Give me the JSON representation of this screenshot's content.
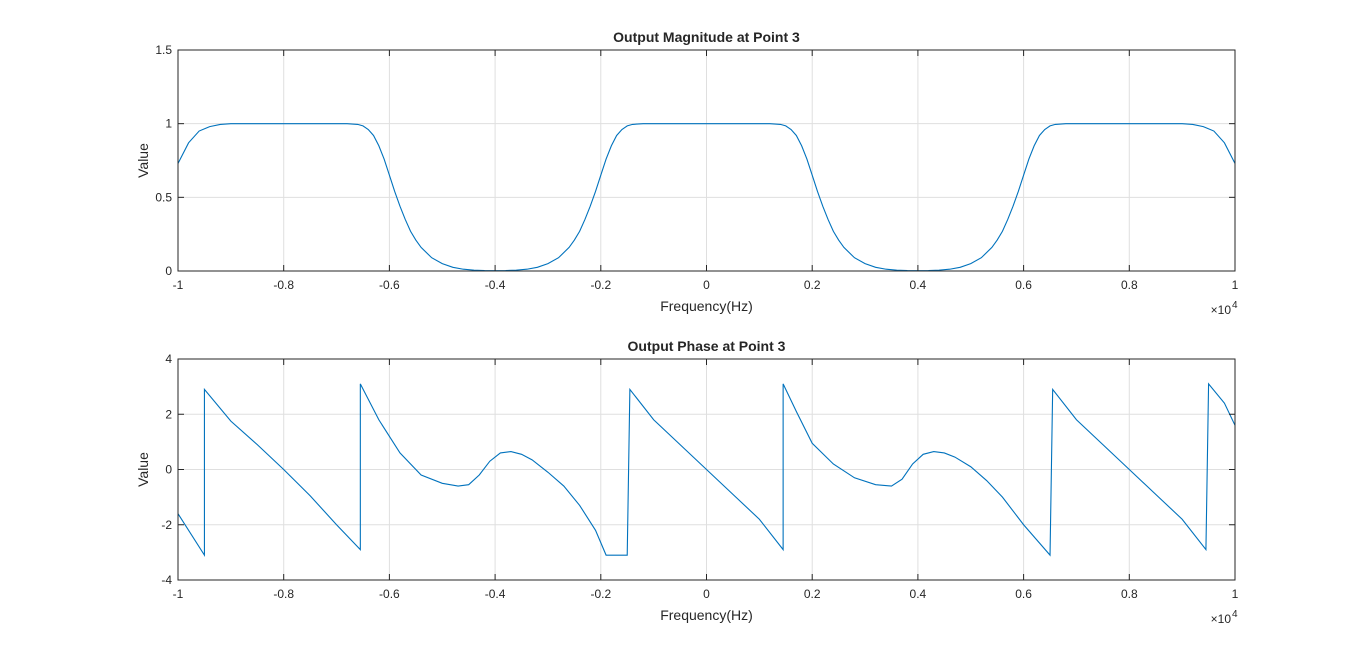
{
  "chart_data": [
    {
      "type": "line",
      "title": "Output Magnitude at Point 3",
      "xlabel": "Frequency(Hz)",
      "ylabel": "Value",
      "x_exponent_label": "×10",
      "x_exponent": "4",
      "xlim": [
        -1,
        1
      ],
      "ylim": [
        0,
        1.5
      ],
      "grid": true,
      "x_ticks": [
        -1,
        -0.8,
        -0.6,
        -0.4,
        -0.2,
        0,
        0.2,
        0.4,
        0.6,
        0.8,
        1
      ],
      "x_tick_labels": [
        "-1",
        "-0.8",
        "-0.6",
        "-0.4",
        "-0.2",
        "0",
        "0.2",
        "0.4",
        "0.6",
        "0.8",
        "1"
      ],
      "y_ticks": [
        0,
        0.5,
        1,
        1.5
      ],
      "y_tick_labels": [
        "0",
        "0.5",
        "1",
        "1.5"
      ],
      "color": "#0072bd",
      "series": [
        {
          "x": [
            -1,
            -0.98,
            -0.96,
            -0.94,
            -0.92,
            -0.9,
            -0.8,
            -0.7,
            -0.68,
            -0.66,
            -0.65,
            -0.64,
            -0.63,
            -0.62,
            -0.61,
            -0.6,
            -0.59,
            -0.58,
            -0.57,
            -0.56,
            -0.55,
            -0.54,
            -0.52,
            -0.5,
            -0.48,
            -0.46,
            -0.44,
            -0.42,
            -0.4,
            -0.38,
            -0.36,
            -0.34,
            -0.32,
            -0.3,
            -0.28,
            -0.26,
            -0.25,
            -0.24,
            -0.23,
            -0.22,
            -0.21,
            -0.2,
            -0.19,
            -0.18,
            -0.17,
            -0.16,
            -0.15,
            -0.14,
            -0.12,
            -0.1,
            -0.05,
            0,
            0.05,
            0.1,
            0.12,
            0.14,
            0.15,
            0.16,
            0.17,
            0.18,
            0.19,
            0.2,
            0.21,
            0.22,
            0.23,
            0.24,
            0.25,
            0.26,
            0.28,
            0.3,
            0.32,
            0.34,
            0.36,
            0.38,
            0.4,
            0.42,
            0.44,
            0.46,
            0.48,
            0.5,
            0.52,
            0.54,
            0.55,
            0.56,
            0.57,
            0.58,
            0.59,
            0.6,
            0.61,
            0.62,
            0.63,
            0.64,
            0.65,
            0.66,
            0.68,
            0.7,
            0.8,
            0.9,
            0.92,
            0.94,
            0.96,
            0.98,
            1
          ],
          "y": [
            0.73,
            0.87,
            0.95,
            0.98,
            0.995,
            1,
            1,
            1,
            1,
            0.995,
            0.985,
            0.96,
            0.92,
            0.85,
            0.76,
            0.65,
            0.54,
            0.44,
            0.35,
            0.27,
            0.21,
            0.16,
            0.09,
            0.05,
            0.025,
            0.012,
            0.006,
            0.003,
            0.002,
            0.003,
            0.006,
            0.012,
            0.025,
            0.05,
            0.09,
            0.16,
            0.21,
            0.27,
            0.35,
            0.44,
            0.54,
            0.65,
            0.76,
            0.85,
            0.92,
            0.96,
            0.985,
            0.995,
            1,
            1,
            1,
            1,
            1,
            1,
            1,
            0.995,
            0.985,
            0.96,
            0.92,
            0.85,
            0.76,
            0.65,
            0.54,
            0.44,
            0.35,
            0.27,
            0.21,
            0.16,
            0.09,
            0.05,
            0.025,
            0.012,
            0.006,
            0.003,
            0.002,
            0.003,
            0.006,
            0.012,
            0.025,
            0.05,
            0.09,
            0.16,
            0.21,
            0.27,
            0.35,
            0.44,
            0.54,
            0.65,
            0.76,
            0.85,
            0.92,
            0.96,
            0.985,
            0.995,
            1,
            1,
            1,
            1,
            0.995,
            0.98,
            0.95,
            0.87,
            0.73
          ]
        }
      ]
    },
    {
      "type": "line",
      "title": "Output Phase at Point 3",
      "xlabel": "Frequency(Hz)",
      "ylabel": "Value",
      "x_exponent_label": "×10",
      "x_exponent": "4",
      "xlim": [
        -1,
        1
      ],
      "ylim": [
        -4,
        4
      ],
      "grid": true,
      "x_ticks": [
        -1,
        -0.8,
        -0.6,
        -0.4,
        -0.2,
        0,
        0.2,
        0.4,
        0.6,
        0.8,
        1
      ],
      "x_tick_labels": [
        "-1",
        "-0.8",
        "-0.6",
        "-0.4",
        "-0.2",
        "0",
        "0.2",
        "0.4",
        "0.6",
        "0.8",
        "1"
      ],
      "y_ticks": [
        -4,
        -2,
        0,
        2,
        4
      ],
      "y_tick_labels": [
        "-4",
        "-2",
        "0",
        "2",
        "4"
      ],
      "color": "#0072bd",
      "series": [
        {
          "x": [
            -1,
            -0.95,
            -0.95,
            -0.9,
            -0.85,
            -0.8,
            -0.75,
            -0.7,
            -0.655,
            -0.655,
            -0.62,
            -0.58,
            -0.54,
            -0.5,
            -0.47,
            -0.45,
            -0.43,
            -0.41,
            -0.39,
            -0.37,
            -0.35,
            -0.33,
            -0.3,
            -0.27,
            -0.24,
            -0.21,
            -0.19,
            -0.15,
            -0.145,
            -0.1,
            -0.05,
            0,
            0.05,
            0.1,
            0.145,
            0.145,
            0.17,
            0.2,
            0.24,
            0.28,
            0.32,
            0.35,
            0.37,
            0.39,
            0.41,
            0.43,
            0.45,
            0.47,
            0.5,
            0.53,
            0.56,
            0.6,
            0.65,
            0.655,
            0.7,
            0.75,
            0.8,
            0.85,
            0.9,
            0.945,
            0.95,
            0.98,
            1
          ],
          "y": [
            -1.6,
            -3.1,
            2.9,
            1.75,
            0.9,
            0.0,
            -0.95,
            -2.0,
            -2.9,
            3.1,
            1.8,
            0.6,
            -0.2,
            -0.5,
            -0.6,
            -0.55,
            -0.2,
            0.3,
            0.6,
            0.65,
            0.55,
            0.35,
            -0.1,
            -0.6,
            -1.3,
            -2.2,
            -3.1,
            -3.1,
            2.9,
            1.8,
            0.9,
            0.0,
            -0.9,
            -1.8,
            -2.9,
            3.1,
            2.1,
            0.95,
            0.2,
            -0.3,
            -0.55,
            -0.6,
            -0.35,
            0.2,
            0.55,
            0.65,
            0.6,
            0.45,
            0.1,
            -0.4,
            -1.0,
            -2.0,
            -3.1,
            2.9,
            1.8,
            0.9,
            0.0,
            -0.9,
            -1.8,
            -2.9,
            3.1,
            2.4,
            1.6
          ]
        }
      ]
    }
  ]
}
